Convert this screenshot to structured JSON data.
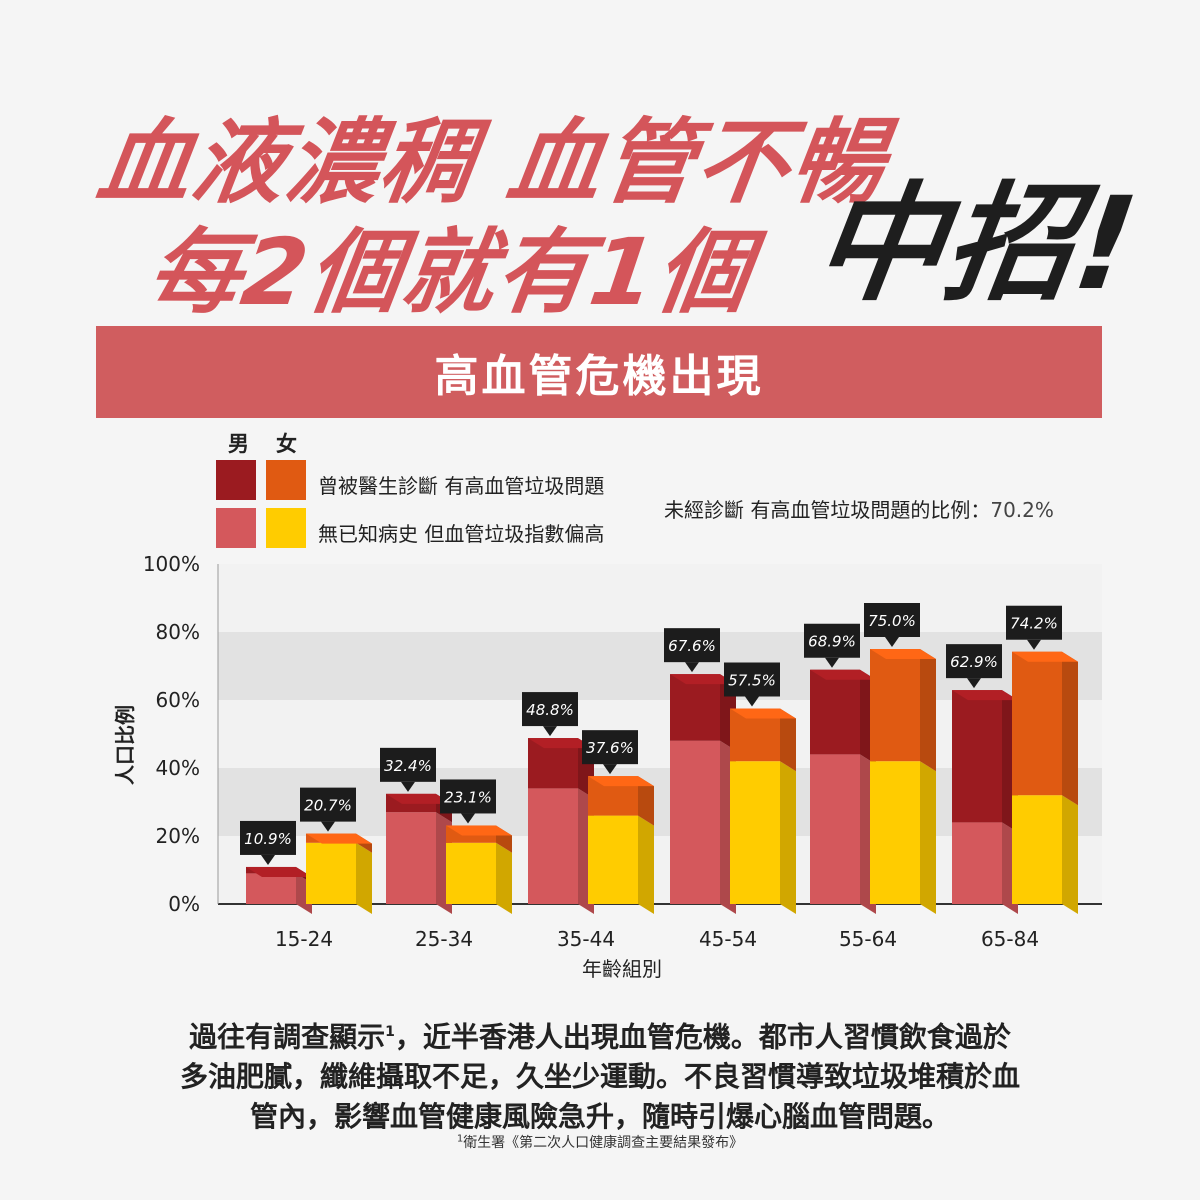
{
  "headline": {
    "line1": "血液濃稠 血管不暢",
    "line2": "每2個就有1個",
    "emphasis": "中招!"
  },
  "banner": "高血管危機出現",
  "legend": {
    "male_label": "男",
    "female_label": "女",
    "diagnosed_label": "曾被醫生診斷 有高血管垃圾問題",
    "undiagnosed_label": "無已知病史 但血管垃圾指數偏高",
    "colors": {
      "male_diagnosed": "#9b1b20",
      "female_diagnosed": "#e05a12",
      "male_undiagnosed": "#d4585c",
      "female_undiagnosed": "#ffcc00"
    }
  },
  "note": {
    "text": "未經診斷 有高血管垃圾問題的比例：",
    "value": "70.2%"
  },
  "chart_data": {
    "type": "bar",
    "stacked": true,
    "categories": [
      "15-24",
      "25-34",
      "35-44",
      "45-54",
      "55-64",
      "65-84"
    ],
    "xlabel": "年齡組別",
    "ylabel": "人口比例",
    "ylim": [
      0,
      100
    ],
    "yticks": [
      "0%",
      "20%",
      "40%",
      "60%",
      "80%",
      "100%"
    ],
    "grid": "alternating-bands",
    "series": [
      {
        "name": "男",
        "undiagnosed": [
          9,
          27,
          34,
          48,
          44,
          24
        ],
        "diagnosed": [
          1.9,
          5.4,
          14.8,
          19.6,
          24.9,
          38.9
        ],
        "total": [
          10.9,
          32.4,
          48.8,
          67.6,
          68.9,
          62.9
        ],
        "labels": [
          "10.9%",
          "32.4%",
          "48.8%",
          "67.6%",
          "68.9%",
          "62.9%"
        ]
      },
      {
        "name": "女",
        "undiagnosed": [
          18,
          18,
          26,
          42,
          42,
          32
        ],
        "diagnosed": [
          2.7,
          5.1,
          11.6,
          15.5,
          33.0,
          42.2
        ],
        "total": [
          20.7,
          23.1,
          37.6,
          57.5,
          75.0,
          74.2
        ],
        "labels": [
          "20.7%",
          "23.1%",
          "37.6%",
          "57.5%",
          "75.0%",
          "74.2%"
        ]
      }
    ]
  },
  "paragraph": {
    "line1_a": "過往有調查顯示",
    "line1_sup": "1",
    "line1_b": "，近半香港人出現血管危機。都市人習慣飲食過於",
    "line2": "多油肥膩，纖維攝取不足，久坐少運動。不良習慣導致垃圾堆積於血",
    "line3": "管內，影響血管健康風險急升，隨時引爆心腦血管問題。"
  },
  "footnote": {
    "sup": "1",
    "text": "衛生署《第二次人口健康調查主要結果發布》"
  }
}
